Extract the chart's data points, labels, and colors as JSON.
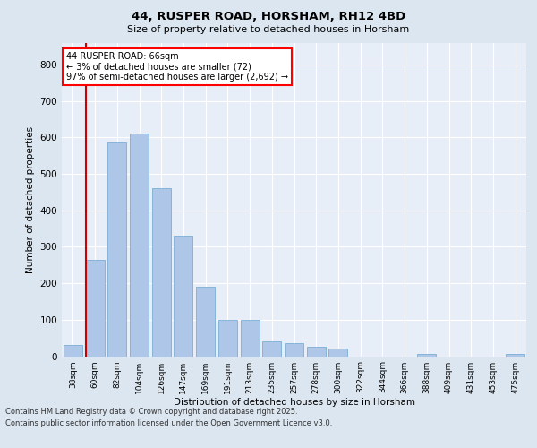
{
  "title": "44, RUSPER ROAD, HORSHAM, RH12 4BD",
  "subtitle": "Size of property relative to detached houses in Horsham",
  "xlabel": "Distribution of detached houses by size in Horsham",
  "ylabel": "Number of detached properties",
  "annotation_line1": "44 RUSPER ROAD: 66sqm",
  "annotation_line2": "← 3% of detached houses are smaller (72)",
  "annotation_line3": "97% of semi-detached houses are larger (2,692) →",
  "footer_line1": "Contains HM Land Registry data © Crown copyright and database right 2025.",
  "footer_line2": "Contains public sector information licensed under the Open Government Licence v3.0.",
  "bar_color": "#aec6e8",
  "bar_edge_color": "#7bafd4",
  "highlight_bar_edge_color": "#cc0000",
  "background_color": "#dce6f0",
  "plot_bg_color": "#e8eef8",
  "grid_color": "#ffffff",
  "categories": [
    "38sqm",
    "60sqm",
    "82sqm",
    "104sqm",
    "126sqm",
    "147sqm",
    "169sqm",
    "191sqm",
    "213sqm",
    "235sqm",
    "257sqm",
    "278sqm",
    "300sqm",
    "322sqm",
    "344sqm",
    "366sqm",
    "388sqm",
    "409sqm",
    "431sqm",
    "453sqm",
    "475sqm"
  ],
  "values": [
    30,
    265,
    585,
    610,
    460,
    330,
    190,
    100,
    100,
    40,
    35,
    25,
    20,
    0,
    0,
    0,
    5,
    0,
    0,
    0,
    5
  ],
  "highlight_index": 1,
  "ylim": [
    0,
    860
  ],
  "yticks": [
    0,
    100,
    200,
    300,
    400,
    500,
    600,
    700,
    800
  ]
}
